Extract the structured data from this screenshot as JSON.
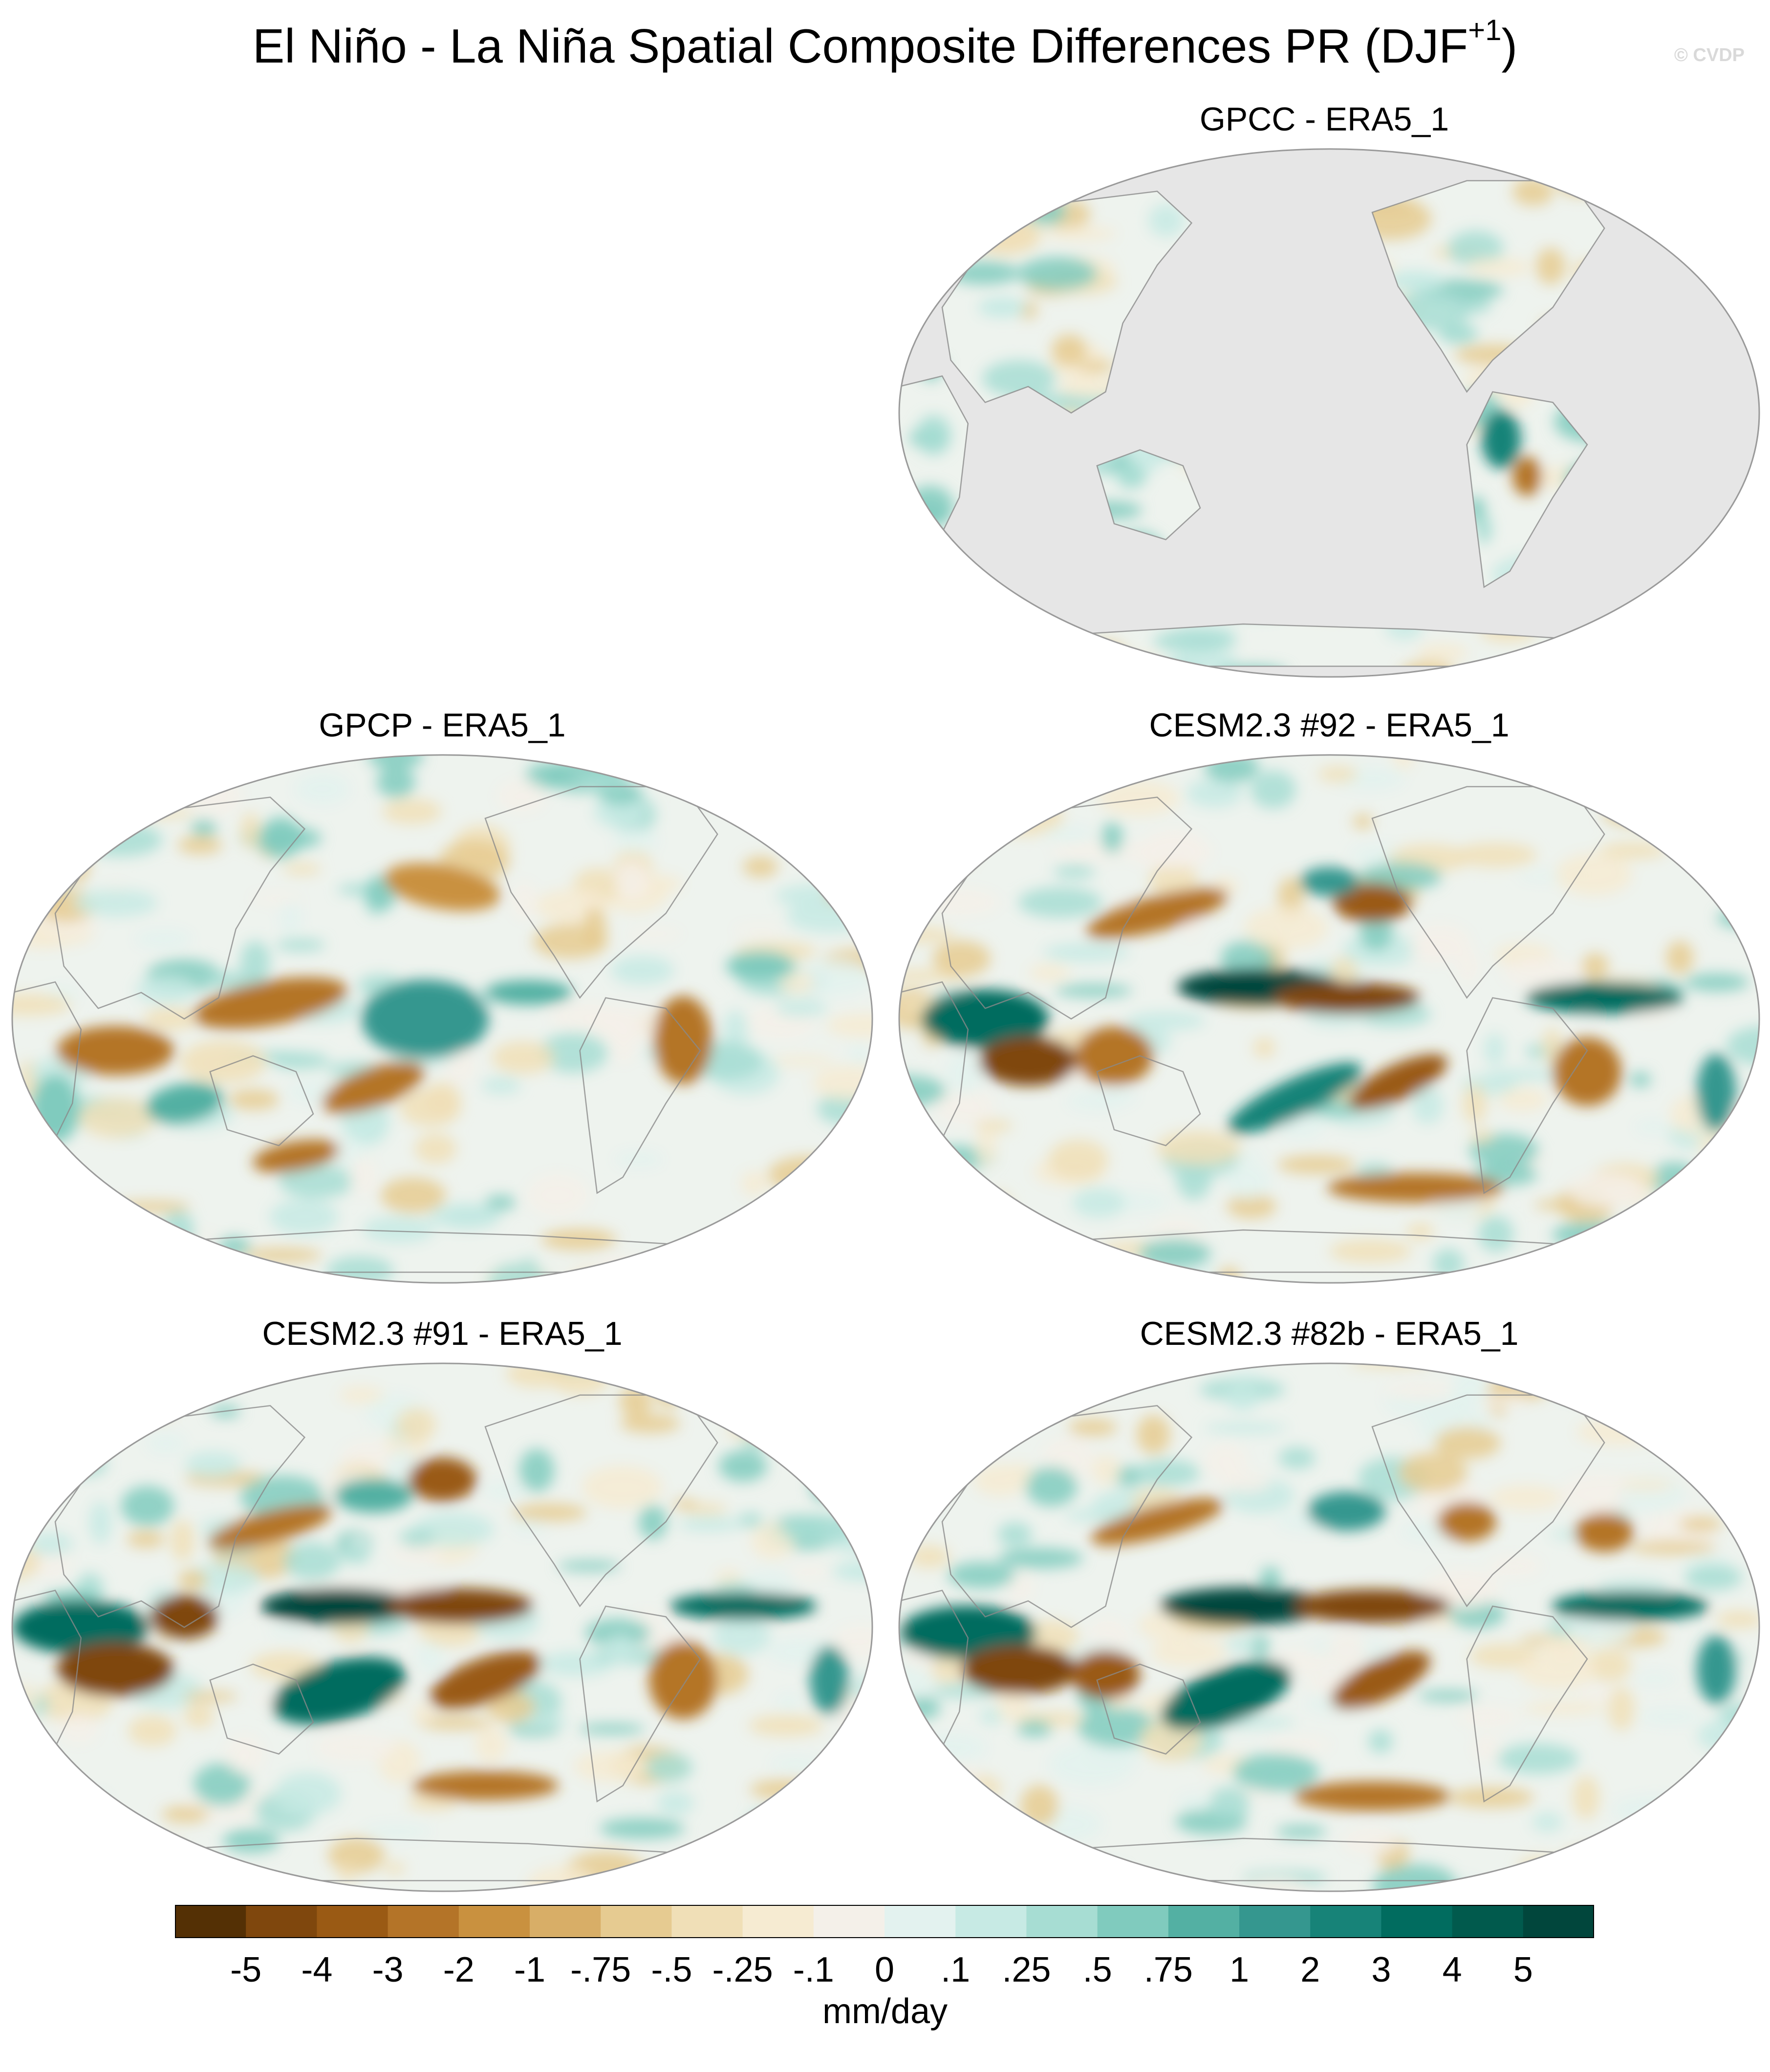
{
  "figure": {
    "title": "El Niño - La Niña Spatial Composite Differences PR (DJF",
    "title_superscript": "+1",
    "title_close": ")",
    "watermark": "© CVDP"
  },
  "panels": [
    {
      "label": "GPCC - ERA5_1",
      "ocean_masked": true
    },
    {
      "label": "GPCP - ERA5_1",
      "ocean_masked": false
    },
    {
      "label": "CESM2.3 #92 - ERA5_1",
      "ocean_masked": false
    },
    {
      "label": "CESM2.3 #91 - ERA5_1",
      "ocean_masked": false
    },
    {
      "label": "CESM2.3 #82b - ERA5_1",
      "ocean_masked": false
    }
  ],
  "colorbar": {
    "colors": [
      "#543005",
      "#7f470d",
      "#9a5a14",
      "#b47428",
      "#c9913f",
      "#d8ae67",
      "#e6cb91",
      "#f0dfb7",
      "#f6ebd2",
      "#f4f0e9",
      "#e3f2ef",
      "#c7eae4",
      "#a7ddd3",
      "#80cbbe",
      "#53b0a3",
      "#35978f",
      "#178378",
      "#016c5f",
      "#015a4d",
      "#01463c"
    ],
    "labels": [
      "-5",
      "-4",
      "-3",
      "-2",
      "-1",
      "-.75",
      "-.5",
      "-.25",
      "-.1",
      "0",
      ".1",
      ".25",
      ".5",
      ".75",
      "1",
      "2",
      "3",
      "4",
      "5"
    ],
    "units": "mm/day"
  },
  "chart_data": {
    "type": "map",
    "projection": "Robinson (Pacific-centered)",
    "variable": "PR",
    "season": "DJF+1",
    "levels": [
      -5,
      -4,
      -3,
      -2,
      -1,
      -0.75,
      -0.5,
      -0.25,
      -0.1,
      0,
      0.1,
      0.25,
      0.5,
      0.75,
      1,
      2,
      3,
      4,
      5
    ],
    "units": "mm/day"
  }
}
